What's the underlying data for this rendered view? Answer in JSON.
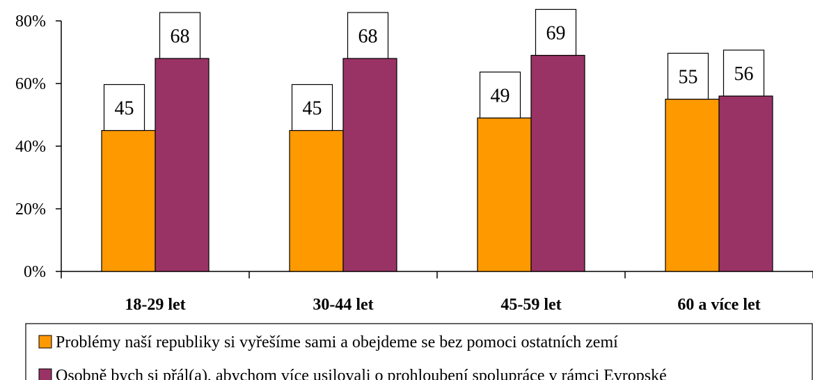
{
  "chart_data": {
    "type": "bar",
    "categories": [
      "18-29 let",
      "30-44 let",
      "45-59 let",
      "60 a více let"
    ],
    "series": [
      {
        "name": "Problémy naší republiky si vyřešíme sami a obejdeme se bez pomoci ostatních zemí",
        "values": [
          45,
          45,
          49,
          55
        ],
        "color": "#ff9900"
      },
      {
        "name": "Osobně bych si přál(a), abychom více usilovali o prohloubení spolupráce v rámci Evropské",
        "values": [
          68,
          68,
          69,
          56
        ],
        "color": "#993366"
      }
    ],
    "y_ticks": [
      "0%",
      "20%",
      "40%",
      "60%",
      "80%"
    ],
    "ylim": [
      0,
      80
    ],
    "grid": false,
    "legend_position": "bottom",
    "title": "",
    "xlabel": "",
    "ylabel": ""
  }
}
